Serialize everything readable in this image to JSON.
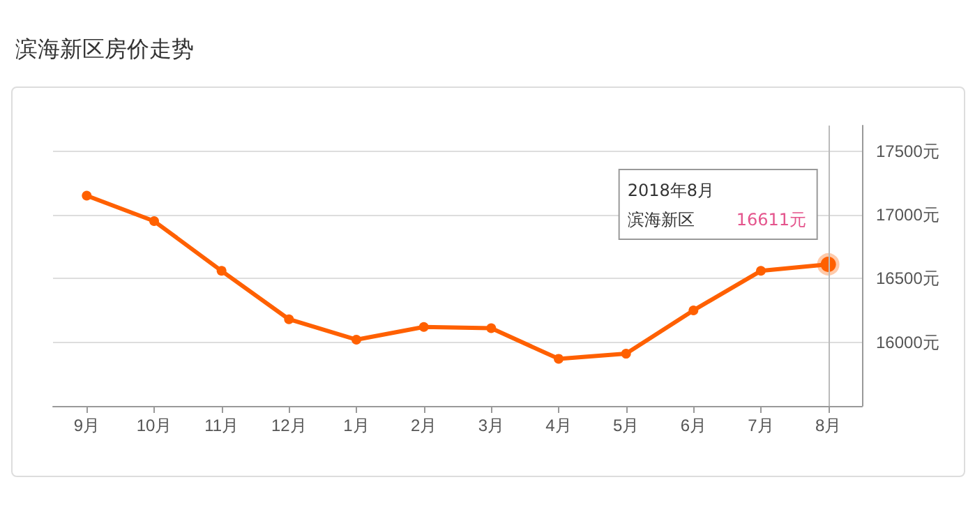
{
  "chart_data": {
    "type": "line",
    "title": "滨海新区房价走势",
    "categories": [
      "9月",
      "10月",
      "11月",
      "12月",
      "1月",
      "2月",
      "3月",
      "4月",
      "5月",
      "6月",
      "7月",
      "8月"
    ],
    "series": [
      {
        "name": "滨海新区",
        "color": "#ff6000",
        "values": [
          17150,
          16950,
          16560,
          16180,
          16020,
          16120,
          16110,
          15870,
          15910,
          16250,
          16560,
          16611
        ],
        "value_labels": [
          null,
          null,
          null,
          null,
          null,
          null,
          null,
          null,
          null,
          null,
          null,
          "16611元"
        ]
      }
    ],
    "ylim": [
      15500,
      17700
    ],
    "yticks": [
      {
        "value": 16000,
        "label": "16000元"
      },
      {
        "value": 16500,
        "label": "16500元"
      },
      {
        "value": 17000,
        "label": "17000元"
      },
      {
        "value": 17500,
        "label": "17500元"
      }
    ],
    "grid": "y",
    "legend": false,
    "marker": "circle",
    "line_style": "solid",
    "ref_lines": [
      {
        "axis": "x",
        "value": "8月",
        "color": "#bbbbbb"
      }
    ],
    "annotations": [
      "2018年8月"
    ]
  }
}
